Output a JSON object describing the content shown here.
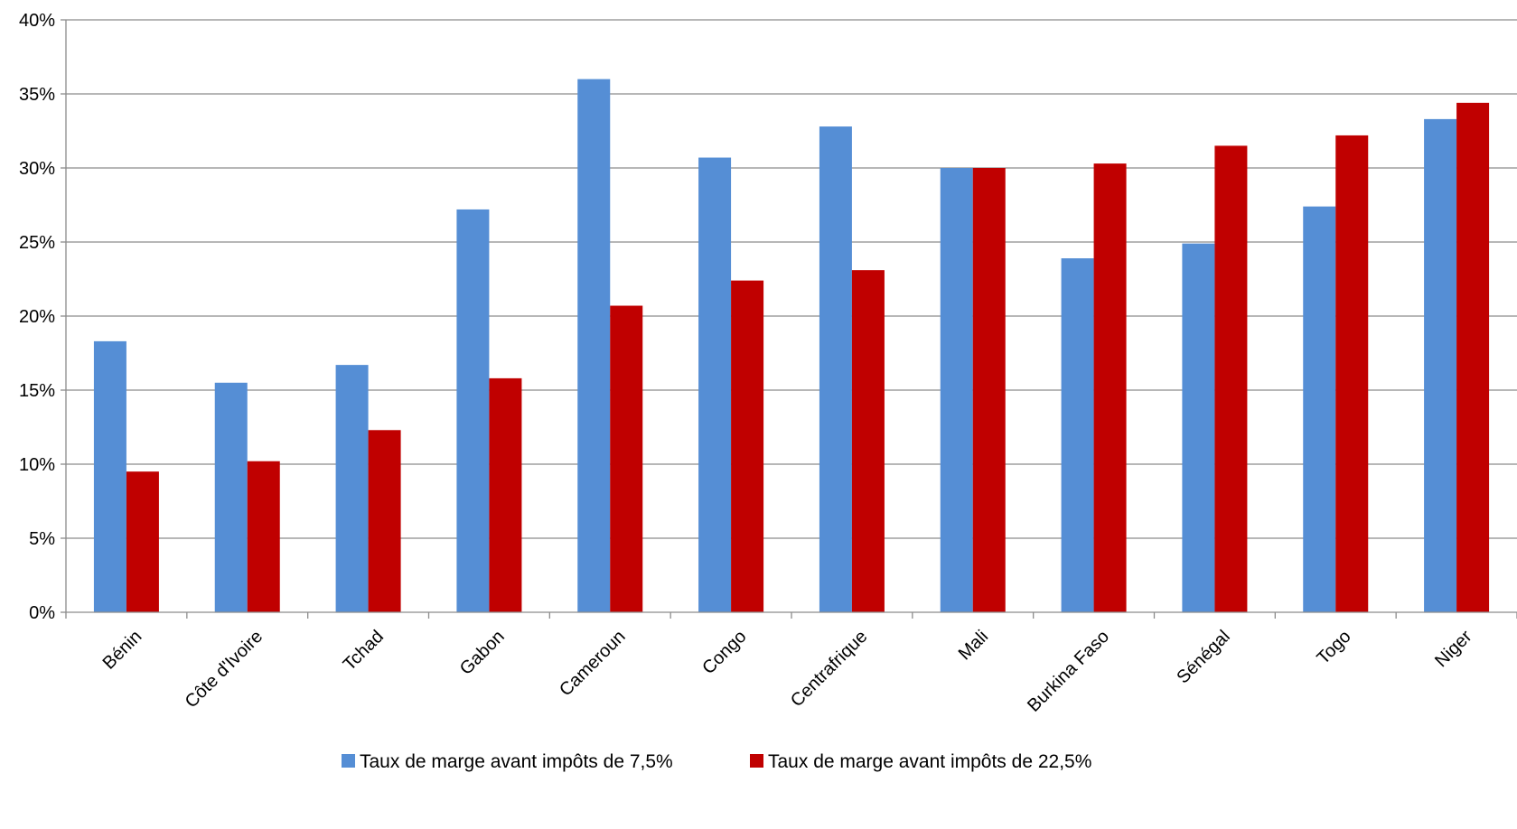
{
  "chart_data": {
    "type": "bar",
    "title": "",
    "xlabel": "",
    "ylabel": "",
    "ylim": [
      0,
      40
    ],
    "y_ticks": [
      0,
      5,
      10,
      15,
      20,
      25,
      30,
      35,
      40
    ],
    "y_tick_labels": [
      "0%",
      "5%",
      "10%",
      "15%",
      "20%",
      "25%",
      "30%",
      "35%",
      "40%"
    ],
    "grid": true,
    "legend_position": "bottom",
    "categories": [
      "Bénin",
      "Côte d'Ivoire",
      "Tchad",
      "Gabon",
      "Cameroun",
      "Congo",
      "Centrafrique",
      "Mali",
      "Burkina Faso",
      "Sénégal",
      "Togo",
      "Niger"
    ],
    "series": [
      {
        "name": "Taux de marge avant impôts de 7,5%",
        "color": "#558ED5",
        "values": [
          18.3,
          15.5,
          16.7,
          27.2,
          36.0,
          30.7,
          32.8,
          30.0,
          23.9,
          24.9,
          27.4,
          33.3
        ]
      },
      {
        "name": "Taux de marge avant impôts de 22,5%",
        "color": "#C00000",
        "values": [
          9.5,
          10.2,
          12.3,
          15.8,
          20.7,
          22.4,
          23.1,
          30.0,
          30.3,
          31.5,
          32.2,
          34.4
        ]
      }
    ]
  }
}
